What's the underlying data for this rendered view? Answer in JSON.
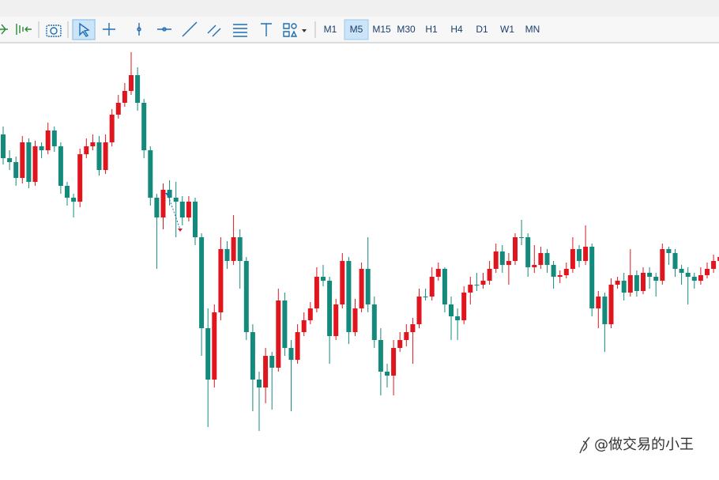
{
  "toolbar": {
    "timeframes": [
      "M1",
      "M5",
      "M15",
      "M30",
      "H1",
      "H4",
      "D1",
      "W1",
      "MN"
    ],
    "active": "M5"
  },
  "watermark": "@做交易的小王",
  "chart_data": {
    "type": "candlestick",
    "up_color": "#e0161e",
    "down_color": "#138a7c",
    "ylim": [
      0,
      545
    ],
    "open": [
      430,
      400,
      395,
      375,
      420,
      370,
      415,
      410,
      435,
      415,
      365,
      350,
      345,
      405,
      415,
      420,
      385,
      420,
      455,
      470,
      485,
      505,
      470,
      410,
      350,
      325,
      360,
      350,
      345,
      325,
      345,
      300,
      185,
      120,
      205,
      285,
      270,
      300,
      270,
      180,
      120,
      110,
      150,
      135,
      220,
      160,
      145,
      180,
      195,
      210,
      250,
      245,
      175,
      215,
      270,
      180,
      210,
      260,
      215,
      170,
      130,
      125,
      160,
      170,
      180,
      190,
      225,
      225,
      250,
      260,
      215,
      200,
      195,
      230,
      240,
      240,
      245,
      260,
      282,
      265,
      270,
      300,
      300,
      262,
      265,
      280,
      265,
      250,
      252,
      260,
      285,
      270,
      288,
      210,
      225,
      190,
      240,
      245,
      230,
      252,
      232,
      255,
      250,
      245,
      285,
      280,
      260,
      255,
      250,
      245,
      252,
      260,
      270,
      275
    ],
    "high": [
      440,
      410,
      402,
      428,
      425,
      422,
      420,
      445,
      440,
      420,
      370,
      355,
      412,
      425,
      430,
      428,
      430,
      462,
      480,
      495,
      534,
      515,
      475,
      415,
      355,
      368,
      372,
      370,
      352,
      352,
      350,
      305,
      210,
      215,
      300,
      295,
      328,
      310,
      275,
      190,
      130,
      160,
      155,
      235,
      230,
      170,
      190,
      205,
      218,
      262,
      265,
      250,
      222,
      280,
      275,
      222,
      268,
      300,
      225,
      185,
      140,
      170,
      180,
      190,
      198,
      235,
      235,
      262,
      268,
      262,
      225,
      210,
      238,
      250,
      255,
      255,
      270,
      292,
      290,
      280,
      305,
      322,
      305,
      290,
      288,
      285,
      270,
      258,
      268,
      300,
      290,
      315,
      292,
      232,
      230,
      248,
      250,
      255,
      285,
      258,
      262,
      262,
      255,
      292,
      288,
      285,
      265,
      262,
      255,
      262,
      268,
      278,
      285,
      282
    ],
    "low": [
      392,
      385,
      365,
      368,
      362,
      365,
      400,
      405,
      408,
      355,
      340,
      325,
      338,
      400,
      410,
      378,
      380,
      415,
      450,
      465,
      480,
      460,
      400,
      340,
      260,
      310,
      340,
      300,
      315,
      320,
      290,
      150,
      60,
      110,
      195,
      260,
      265,
      235,
      170,
      80,
      55,
      90,
      82,
      130,
      150,
      80,
      140,
      175,
      190,
      205,
      238,
      140,
      170,
      210,
      165,
      175,
      205,
      205,
      160,
      100,
      110,
      100,
      155,
      162,
      140,
      185,
      220,
      220,
      245,
      205,
      170,
      170,
      190,
      215,
      232,
      235,
      240,
      255,
      255,
      240,
      265,
      290,
      250,
      255,
      260,
      255,
      235,
      242,
      248,
      255,
      262,
      265,
      200,
      185,
      155,
      185,
      235,
      220,
      225,
      225,
      228,
      235,
      225,
      240,
      265,
      250,
      240,
      215,
      235,
      240,
      248,
      255,
      262,
      250
    ],
    "close": [
      400,
      395,
      375,
      420,
      370,
      415,
      410,
      435,
      415,
      365,
      350,
      345,
      405,
      415,
      420,
      385,
      420,
      455,
      470,
      485,
      505,
      470,
      410,
      350,
      325,
      360,
      350,
      345,
      325,
      345,
      300,
      185,
      120,
      205,
      285,
      270,
      300,
      270,
      180,
      120,
      110,
      150,
      135,
      220,
      160,
      145,
      180,
      195,
      210,
      250,
      245,
      175,
      215,
      270,
      180,
      210,
      260,
      215,
      170,
      130,
      125,
      160,
      170,
      180,
      190,
      225,
      225,
      250,
      260,
      215,
      200,
      195,
      230,
      240,
      240,
      245,
      260,
      282,
      265,
      270,
      300,
      300,
      262,
      265,
      280,
      265,
      250,
      252,
      260,
      285,
      270,
      288,
      210,
      225,
      190,
      240,
      245,
      230,
      252,
      232,
      255,
      250,
      245,
      285,
      280,
      260,
      255,
      250,
      245,
      252,
      260,
      270,
      275,
      260
    ]
  }
}
